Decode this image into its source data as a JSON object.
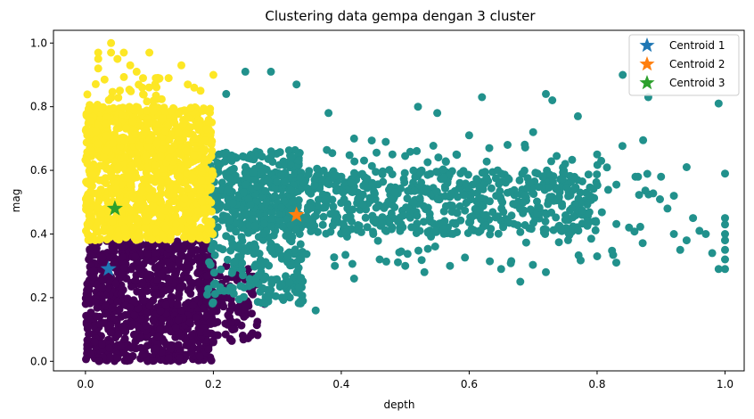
{
  "chart_data": {
    "type": "scatter",
    "title": "Clustering data gempa dengan 3 cluster",
    "xlabel": "depth",
    "ylabel": "mag",
    "xlim": [
      -0.05,
      1.03
    ],
    "ylim": [
      -0.03,
      1.04
    ],
    "xticks": [
      "0.0",
      "0.2",
      "0.4",
      "0.6",
      "0.8",
      "1.0"
    ],
    "yticks": [
      "0.0",
      "0.2",
      "0.4",
      "0.6",
      "0.8",
      "1.0"
    ],
    "grid": false,
    "legend_position": "top-right",
    "clusters": [
      {
        "color": "#440154",
        "regions": [
          {
            "x": [
              0.0,
              0.2
            ],
            "y": [
              0.0,
              0.38
            ],
            "density": 900
          },
          {
            "x": [
              0.18,
              0.27
            ],
            "y": [
              0.06,
              0.3
            ],
            "density": 120
          }
        ],
        "extra_points": [
          [
            0.09,
            0.02
          ],
          [
            0.13,
            0.01
          ],
          [
            0.2,
            0.06
          ],
          [
            0.23,
            0.1
          ],
          [
            0.26,
            0.15
          ],
          [
            0.28,
            0.18
          ],
          [
            0.05,
            0.01
          ],
          [
            0.11,
            0.04
          ]
        ]
      },
      {
        "color": "#21918c",
        "regions": [
          {
            "x": [
              0.19,
              0.34
            ],
            "y": [
              0.18,
              0.66
            ],
            "density": 400
          },
          {
            "x": [
              0.22,
              0.8
            ],
            "y": [
              0.4,
              0.6
            ],
            "density": 700
          },
          {
            "x": [
              0.3,
              0.9
            ],
            "y": [
              0.3,
              0.7
            ],
            "density": 150
          }
        ],
        "extra_points": [
          [
            0.25,
            0.91
          ],
          [
            0.29,
            0.91
          ],
          [
            0.22,
            0.84
          ],
          [
            0.33,
            0.87
          ],
          [
            0.52,
            0.8
          ],
          [
            0.55,
            0.78
          ],
          [
            0.62,
            0.83
          ],
          [
            0.72,
            0.84
          ],
          [
            0.73,
            0.82
          ],
          [
            0.84,
            0.9
          ],
          [
            0.88,
            0.83
          ],
          [
            0.99,
            0.81
          ],
          [
            0.38,
            0.78
          ],
          [
            0.42,
            0.7
          ],
          [
            0.6,
            0.71
          ],
          [
            0.77,
            0.77
          ],
          [
            0.75,
            0.62
          ],
          [
            0.9,
            0.58
          ],
          [
            0.92,
            0.52
          ],
          [
            0.95,
            0.45
          ],
          [
            0.96,
            0.41
          ],
          [
            0.97,
            0.4
          ],
          [
            1.0,
            0.59
          ],
          [
            1.0,
            0.45
          ],
          [
            1.0,
            0.43
          ],
          [
            1.0,
            0.4
          ],
          [
            1.0,
            0.38
          ],
          [
            1.0,
            0.35
          ],
          [
            1.0,
            0.32
          ],
          [
            1.0,
            0.29
          ],
          [
            0.99,
            0.29
          ],
          [
            0.98,
            0.34
          ],
          [
            0.93,
            0.35
          ],
          [
            0.91,
            0.48
          ],
          [
            0.85,
            0.42
          ],
          [
            0.83,
            0.31
          ],
          [
            0.8,
            0.33
          ],
          [
            0.72,
            0.28
          ],
          [
            0.68,
            0.25
          ],
          [
            0.65,
            0.29
          ],
          [
            0.57,
            0.3
          ],
          [
            0.53,
            0.28
          ],
          [
            0.5,
            0.3
          ],
          [
            0.46,
            0.32
          ],
          [
            0.42,
            0.26
          ],
          [
            0.39,
            0.3
          ],
          [
            0.36,
            0.16
          ],
          [
            0.34,
            0.19
          ],
          [
            0.31,
            0.2
          ],
          [
            0.45,
            0.4
          ],
          [
            0.48,
            0.65
          ],
          [
            0.58,
            0.65
          ],
          [
            0.66,
            0.68
          ],
          [
            0.7,
            0.72
          ],
          [
            0.8,
            0.65
          ],
          [
            0.86,
            0.58
          ],
          [
            0.94,
            0.61
          ],
          [
            0.94,
            0.38
          ],
          [
            0.92,
            0.4
          ]
        ]
      },
      {
        "color": "#fde725",
        "regions": [
          {
            "x": [
              0.0,
              0.2
            ],
            "y": [
              0.38,
              0.8
            ],
            "density": 1100
          },
          {
            "x": [
              0.0,
              0.14
            ],
            "y": [
              0.6,
              0.9
            ],
            "density": 120
          }
        ],
        "extra_points": [
          [
            0.02,
            0.97
          ],
          [
            0.02,
            0.95
          ],
          [
            0.02,
            0.92
          ],
          [
            0.04,
            1.0
          ],
          [
            0.04,
            0.97
          ],
          [
            0.06,
            0.97
          ],
          [
            0.07,
            0.93
          ],
          [
            0.1,
            0.97
          ],
          [
            0.08,
            0.91
          ],
          [
            0.09,
            0.89
          ],
          [
            0.11,
            0.89
          ],
          [
            0.13,
            0.89
          ],
          [
            0.15,
            0.93
          ],
          [
            0.16,
            0.87
          ],
          [
            0.17,
            0.86
          ],
          [
            0.2,
            0.9
          ],
          [
            0.18,
            0.85
          ],
          [
            0.05,
            0.95
          ]
        ]
      }
    ],
    "centroids": [
      {
        "name": "Centroid 1",
        "x": 0.036,
        "y": 0.29,
        "color": "#1f77b4"
      },
      {
        "name": "Centroid 2",
        "x": 0.33,
        "y": 0.46,
        "color": "#ff7f0e"
      },
      {
        "name": "Centroid 3",
        "x": 0.046,
        "y": 0.48,
        "color": "#2ca02c"
      }
    ]
  }
}
